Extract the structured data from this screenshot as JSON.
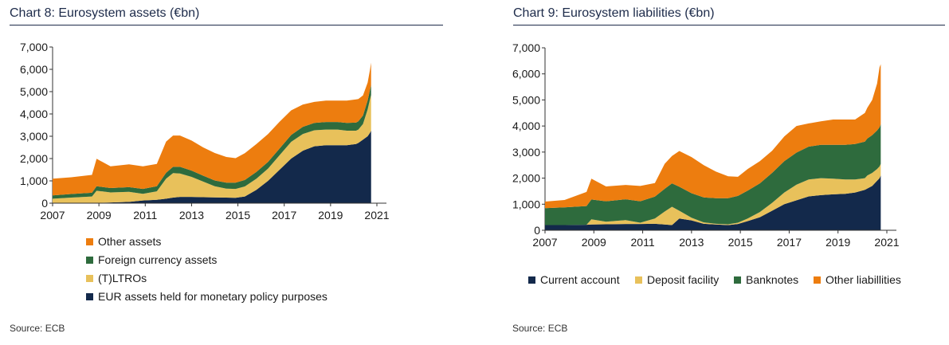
{
  "chart_data": [
    {
      "type": "area",
      "stacked": true,
      "title": "Chart 8: Eurosystem assets (€bn)",
      "source": "Source: ECB",
      "xlabel": "",
      "ylabel": "",
      "xlim": [
        2007,
        2021
      ],
      "ylim": [
        0,
        7000
      ],
      "x_ticks": [
        "2007",
        "2009",
        "2011",
        "2013",
        "2015",
        "2017",
        "2019",
        "2021"
      ],
      "y_ticks": [
        "0",
        "1,000",
        "2,000",
        "3,000",
        "4,000",
        "5,000",
        "6,000",
        "7,000"
      ],
      "legend_position": "below",
      "x": [
        2007,
        2007.8,
        2008.7,
        2008.9,
        2009.5,
        2010.3,
        2010.9,
        2011.5,
        2011.9,
        2012.2,
        2012.5,
        2013,
        2013.5,
        2014,
        2014.5,
        2014.9,
        2015.3,
        2015.8,
        2016.3,
        2016.8,
        2017.3,
        2017.8,
        2018.3,
        2018.8,
        2019.3,
        2019.7,
        2020.1,
        2020.2,
        2020.4,
        2020.6,
        2020.7,
        2020.75
      ],
      "series": [
        {
          "name": "EUR assets held for monetary policy purposes",
          "color": "#13294b",
          "values": [
            0,
            0,
            0,
            10,
            30,
            60,
            120,
            150,
            200,
            250,
            280,
            280,
            270,
            260,
            250,
            240,
            300,
            600,
            1000,
            1500,
            2000,
            2350,
            2550,
            2600,
            2600,
            2600,
            2650,
            2700,
            2850,
            3000,
            3150,
            3250
          ]
        },
        {
          "name": "(T)LTROs",
          "color": "#e8c15b",
          "values": [
            200,
            250,
            300,
            550,
            450,
            450,
            300,
            380,
            900,
            1100,
            1050,
            900,
            700,
            500,
            400,
            400,
            450,
            500,
            550,
            650,
            750,
            750,
            720,
            700,
            700,
            650,
            600,
            600,
            700,
            1200,
            1500,
            1600
          ]
        },
        {
          "name": "Foreign currency assets",
          "color": "#2e6b3d",
          "values": [
            150,
            160,
            170,
            200,
            200,
            210,
            220,
            230,
            260,
            280,
            300,
            280,
            260,
            260,
            270,
            280,
            290,
            300,
            300,
            300,
            310,
            320,
            330,
            340,
            340,
            350,
            360,
            370,
            380,
            400,
            420,
            440
          ]
        },
        {
          "name": "Other assets",
          "color": "#ed7d0f",
          "values": [
            750,
            750,
            800,
            1230,
            970,
            1020,
            1010,
            1000,
            1400,
            1400,
            1400,
            1350,
            1270,
            1230,
            1150,
            1100,
            1200,
            1250,
            1250,
            1200,
            1100,
            1000,
            940,
            960,
            960,
            1000,
            1040,
            1000,
            900,
            800,
            900,
            1010
          ]
        }
      ]
    },
    {
      "type": "area",
      "stacked": true,
      "title": "Chart 9: Eurosystem liabilities (€bn)",
      "source": "Source: ECB",
      "xlabel": "",
      "ylabel": "",
      "xlim": [
        2007,
        2021
      ],
      "ylim": [
        0,
        7000
      ],
      "x_ticks": [
        "2007",
        "2009",
        "2011",
        "2013",
        "2015",
        "2017",
        "2019",
        "2021"
      ],
      "y_ticks": [
        "0",
        "1,000",
        "2,000",
        "3,000",
        "4,000",
        "5,000",
        "6,000",
        "7,000"
      ],
      "legend_position": "bottom",
      "x": [
        2007,
        2007.8,
        2008.7,
        2008.9,
        2009.5,
        2010.3,
        2010.9,
        2011.5,
        2011.9,
        2012.2,
        2012.5,
        2013,
        2013.5,
        2014,
        2014.5,
        2014.9,
        2015.3,
        2015.8,
        2016.3,
        2016.8,
        2017.3,
        2017.8,
        2018.3,
        2018.8,
        2019.3,
        2019.7,
        2020.1,
        2020.2,
        2020.4,
        2020.6,
        2020.7,
        2020.75
      ],
      "series": [
        {
          "name": "Current account",
          "color": "#13294b",
          "values": [
            200,
            200,
            210,
            220,
            230,
            240,
            240,
            250,
            220,
            200,
            450,
            380,
            250,
            220,
            200,
            240,
            350,
            500,
            750,
            1000,
            1150,
            1300,
            1350,
            1380,
            1400,
            1450,
            1550,
            1600,
            1700,
            1900,
            2000,
            2100
          ]
        },
        {
          "name": "Deposit facility",
          "color": "#e8c15b",
          "values": [
            0,
            0,
            0,
            200,
            100,
            150,
            50,
            200,
            500,
            700,
            300,
            100,
            50,
            30,
            30,
            50,
            100,
            200,
            300,
            450,
            600,
            650,
            650,
            600,
            550,
            500,
            450,
            500,
            500,
            450,
            450,
            450
          ]
        },
        {
          "name": "Banknotes",
          "color": "#2e6b3d",
          "values": [
            650,
            680,
            720,
            760,
            780,
            800,
            820,
            840,
            870,
            900,
            920,
            940,
            960,
            980,
            1000,
            1030,
            1070,
            1100,
            1150,
            1200,
            1230,
            1260,
            1280,
            1300,
            1330,
            1360,
            1400,
            1420,
            1450,
            1480,
            1500,
            1520
          ]
        },
        {
          "name": "Other liabillities",
          "color": "#ed7d0f",
          "values": [
            250,
            280,
            540,
            800,
            570,
            550,
            590,
            520,
            960,
            1050,
            1370,
            1390,
            1240,
            1020,
            840,
            730,
            830,
            850,
            850,
            950,
            1020,
            890,
            900,
            970,
            970,
            940,
            1100,
            1180,
            1350,
            1800,
            2300,
            2300
          ]
        }
      ]
    }
  ]
}
